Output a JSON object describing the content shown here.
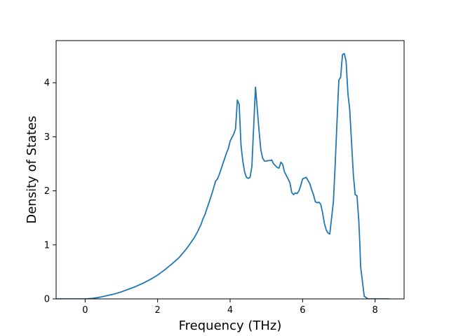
{
  "chart_data": {
    "type": "line",
    "title": "",
    "xlabel": "Frequency (THz)",
    "ylabel": "Density of States",
    "xlim": [
      -0.8,
      8.8
    ],
    "ylim": [
      0,
      4.78
    ],
    "xticks": [
      0,
      2,
      4,
      6,
      8
    ],
    "yticks": [
      0,
      1,
      2,
      3,
      4
    ],
    "grid": false,
    "legend": "none",
    "line_color": "#1f77b4",
    "series": [
      {
        "x": [
          -0.8,
          -0.4,
          0.0,
          0.2,
          0.4,
          0.6,
          0.8,
          1.0,
          1.2,
          1.4,
          1.6,
          1.8,
          2.0,
          2.2,
          2.4,
          2.6,
          2.8,
          3.0,
          3.1,
          3.2,
          3.25,
          3.3,
          3.4,
          3.5,
          3.6,
          3.65,
          3.7,
          3.8,
          3.85,
          3.9,
          3.95,
          4.0,
          4.1,
          4.15,
          4.2,
          4.25,
          4.3,
          4.35,
          4.4,
          4.45,
          4.5,
          4.55,
          4.6,
          4.7,
          4.8,
          4.85,
          4.9,
          4.95,
          5.0,
          5.05,
          5.1,
          5.15,
          5.2,
          5.3,
          5.35,
          5.4,
          5.45,
          5.5,
          5.6,
          5.65,
          5.7,
          5.75,
          5.8,
          5.85,
          5.9,
          5.95,
          6.0,
          6.1,
          6.2,
          6.25,
          6.3,
          6.35,
          6.4,
          6.45,
          6.5,
          6.55,
          6.6,
          6.65,
          6.7,
          6.75,
          6.8,
          6.85,
          6.9,
          6.95,
          7.0,
          7.05,
          7.1,
          7.15,
          7.2,
          7.25,
          7.3,
          7.35,
          7.4,
          7.45,
          7.5,
          7.55,
          7.58,
          7.6,
          7.7,
          7.8,
          8.0,
          8.4
        ],
        "y": [
          0.0,
          0.0,
          0.0,
          0.01,
          0.03,
          0.06,
          0.09,
          0.13,
          0.18,
          0.23,
          0.29,
          0.36,
          0.44,
          0.54,
          0.65,
          0.77,
          0.93,
          1.12,
          1.24,
          1.38,
          1.48,
          1.55,
          1.75,
          1.95,
          2.18,
          2.22,
          2.3,
          2.5,
          2.6,
          2.7,
          2.78,
          2.92,
          3.05,
          3.15,
          3.68,
          3.6,
          2.85,
          2.55,
          2.35,
          2.25,
          2.23,
          2.25,
          2.45,
          3.92,
          3.1,
          2.75,
          2.6,
          2.55,
          2.55,
          2.56,
          2.56,
          2.57,
          2.5,
          2.43,
          2.42,
          2.53,
          2.49,
          2.35,
          2.22,
          2.15,
          1.97,
          1.93,
          1.96,
          1.95,
          2.0,
          2.1,
          2.22,
          2.25,
          2.13,
          2.02,
          1.93,
          1.8,
          1.78,
          1.79,
          1.75,
          1.6,
          1.4,
          1.28,
          1.22,
          1.2,
          1.5,
          1.8,
          2.5,
          3.3,
          4.05,
          4.1,
          4.52,
          4.54,
          4.4,
          3.8,
          3.5,
          2.9,
          2.3,
          1.93,
          1.91,
          1.45,
          1.0,
          0.6,
          0.05,
          0.0,
          0.0,
          0.0
        ]
      }
    ]
  }
}
